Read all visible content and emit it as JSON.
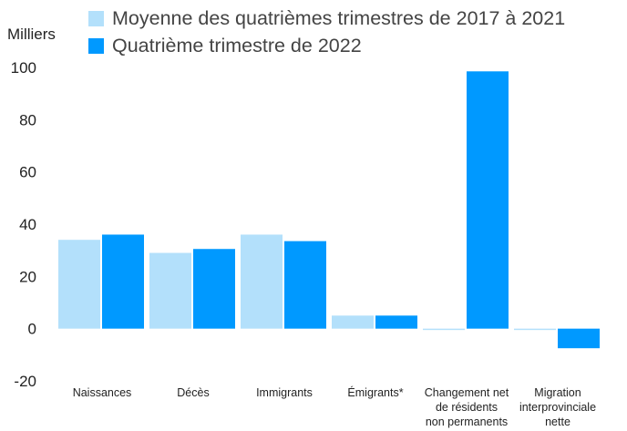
{
  "chart_data": {
    "type": "bar",
    "title": "",
    "xlabel": "",
    "ylabel": "Milliers",
    "ylim": [
      -20,
      100
    ],
    "yticks": [
      -20,
      0,
      20,
      40,
      60,
      80,
      100
    ],
    "ytick_labels": [
      "-20",
      "0",
      "20",
      "40",
      "60",
      "80",
      "100"
    ],
    "grid": false,
    "legend_position": "top",
    "categories": [
      [
        "Naissances"
      ],
      [
        "Décès"
      ],
      [
        "Immigrants"
      ],
      [
        "Émigrants*"
      ],
      [
        "Changement net",
        "de résidents",
        "non permanents"
      ],
      [
        "Migration",
        "interprovinciale",
        "nette"
      ]
    ],
    "series": [
      {
        "name": "Moyenne des quatrièmes trimestres de 2017 à 2021",
        "color": "#b3e0fb",
        "values": [
          34,
          29,
          36,
          5,
          -0.5,
          -0.5
        ]
      },
      {
        "name": "Quatrième trimestre de 2022",
        "color": "#0099ff",
        "values": [
          36,
          30.5,
          33.5,
          5,
          98.5,
          -7.5
        ]
      }
    ]
  }
}
